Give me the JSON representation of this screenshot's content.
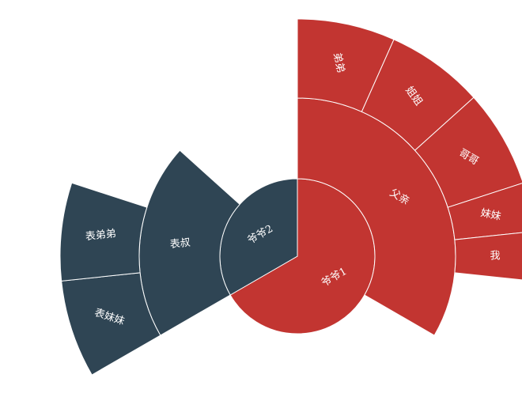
{
  "colors": {
    "series_red": "#c23531",
    "series_dark": "#2f4554"
  },
  "chart_data": {
    "type": "sunburst",
    "title": "",
    "data": [
      {
        "name": "爷爷1",
        "value": 10,
        "color": "#c23531",
        "children": [
          {
            "name": "父亲",
            "value": 5,
            "children": [
              {
                "name": "弟弟",
                "value": 1
              },
              {
                "name": "姐姐",
                "value": 1
              },
              {
                "name": "哥哥",
                "value": 1
              },
              {
                "name": "妹妹",
                "value": 0.5
              },
              {
                "name": "我",
                "value": 0.5
              }
            ]
          }
        ]
      },
      {
        "name": "爷爷2",
        "value": 5,
        "color": "#2f4554",
        "children": [
          {
            "name": "表叔",
            "value": 3,
            "children": [
              {
                "name": "表妹妹",
                "value": 1
              },
              {
                "name": "表弟弟",
                "value": 1
              }
            ]
          }
        ]
      }
    ]
  }
}
